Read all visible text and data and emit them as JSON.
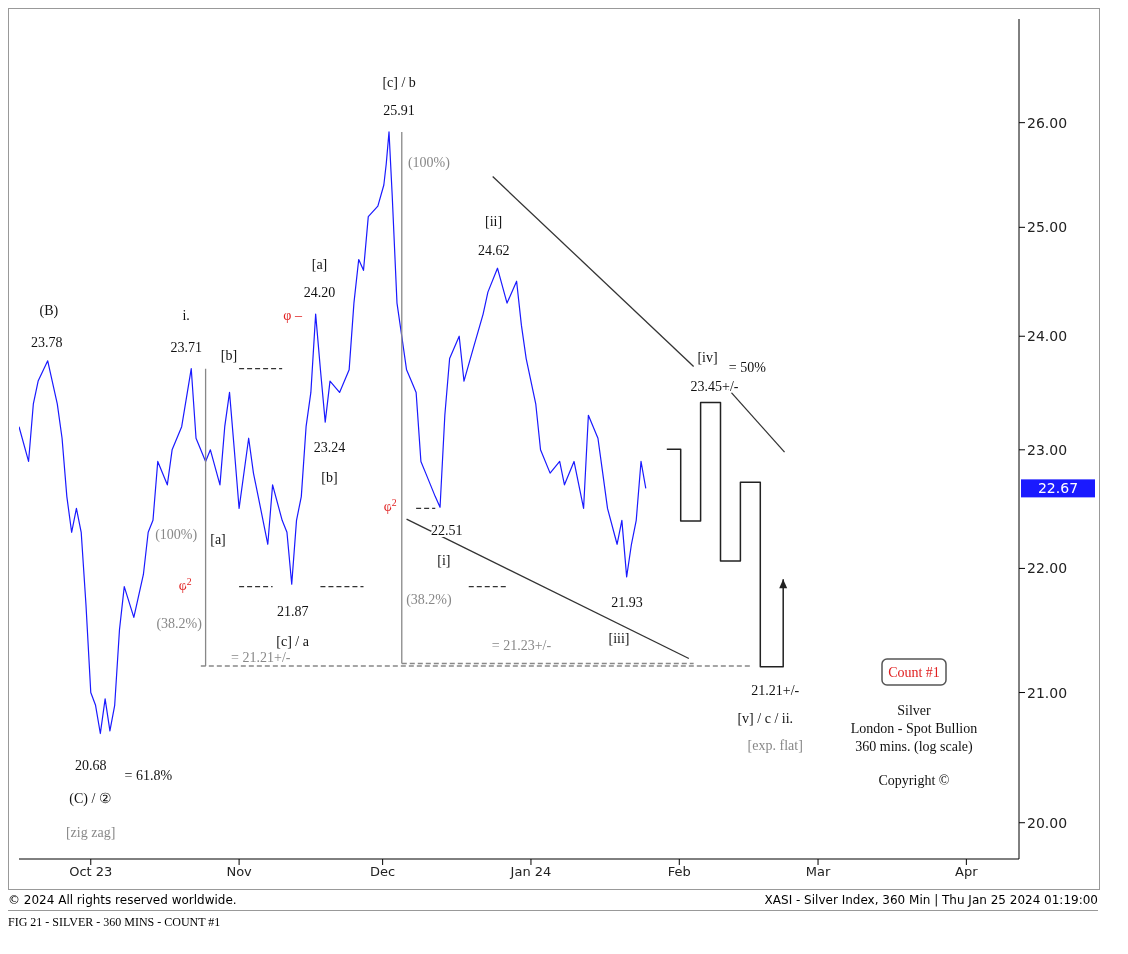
{
  "chart_data": {
    "type": "line",
    "marker": "none",
    "log": "y",
    "xlim": [
      "2023-09-16",
      "2024-04-12"
    ],
    "ylim": [
      19.73,
      27.03
    ],
    "xticks": [
      {
        "value": "2023-10-01",
        "label": "Oct 23"
      },
      {
        "value": "2023-11-01",
        "label": "Nov"
      },
      {
        "value": "2023-12-01",
        "label": "Dec"
      },
      {
        "value": "2024-01-01",
        "label": "Jan 24"
      },
      {
        "value": "2024-02-01",
        "label": "Feb"
      },
      {
        "value": "2024-03-01",
        "label": "Mar"
      },
      {
        "value": "2024-04-01",
        "label": "Apr"
      }
    ],
    "yticks": [
      {
        "value": 20,
        "label": "20.00"
      },
      {
        "value": 21,
        "label": "21.00"
      },
      {
        "value": 22,
        "label": "22.00"
      },
      {
        "value": 23,
        "label": "23.00"
      },
      {
        "value": 24,
        "label": "24.00"
      },
      {
        "value": 25,
        "label": "25.00"
      },
      {
        "value": 26,
        "label": "26.00"
      }
    ],
    "series": [
      {
        "color": "#1a1aff",
        "x": [
          "2023-09-16",
          "2023-09-18",
          "2023-09-19",
          "2023-09-20",
          "2023-09-22",
          "2023-09-24",
          "2023-09-25",
          "2023-09-26",
          "2023-09-27",
          "2023-09-28",
          "2023-09-29",
          "2023-09-30",
          "2023-10-01",
          "2023-10-02",
          "2023-10-03",
          "2023-10-04",
          "2023-10-05",
          "2023-10-06",
          "2023-10-07",
          "2023-10-08",
          "2023-10-10",
          "2023-10-12",
          "2023-10-13",
          "2023-10-14",
          "2023-10-15",
          "2023-10-17",
          "2023-10-18",
          "2023-10-20",
          "2023-10-22",
          "2023-10-23",
          "2023-10-25",
          "2023-10-26",
          "2023-10-28",
          "2023-10-29",
          "2023-10-30",
          "2023-10-31",
          "2023-11-01",
          "2023-11-03",
          "2023-11-04",
          "2023-11-05",
          "2023-11-07",
          "2023-11-08",
          "2023-11-10",
          "2023-11-11",
          "2023-11-12",
          "2023-11-13",
          "2023-11-14",
          "2023-11-15",
          "2023-11-16",
          "2023-11-17",
          "2023-11-18",
          "2023-11-19",
          "2023-11-20",
          "2023-11-22",
          "2023-11-24",
          "2023-11-25",
          "2023-11-26",
          "2023-11-27",
          "2023-11-28",
          "2023-11-30",
          "2023-12-01T06:00",
          "2023-12-01T18:00",
          "2023-12-02T08:00",
          "2023-12-03",
          "2023-12-04",
          "2023-12-05",
          "2023-12-06",
          "2023-12-07",
          "2023-12-08",
          "2023-12-09",
          "2023-12-10",
          "2023-12-12",
          "2023-12-13",
          "2023-12-14",
          "2023-12-15",
          "2023-12-17",
          "2023-12-18",
          "2023-12-20",
          "2023-12-22",
          "2023-12-23",
          "2023-12-25",
          "2023-12-27",
          "2023-12-29",
          "2023-12-30",
          "2023-12-31",
          "2024-01-02",
          "2024-01-03",
          "2024-01-05",
          "2024-01-07",
          "2024-01-08",
          "2024-01-10",
          "2024-01-12",
          "2024-01-13",
          "2024-01-15",
          "2024-01-16",
          "2024-01-17",
          "2024-01-19",
          "2024-01-20",
          "2024-01-21",
          "2024-01-22",
          "2024-01-23",
          "2024-01-24",
          "2024-01-25"
        ],
        "values": [
          23.2,
          22.9,
          23.4,
          23.6,
          23.78,
          23.4,
          23.1,
          22.6,
          22.3,
          22.5,
          22.3,
          21.7,
          21.0,
          20.9,
          20.68,
          20.95,
          20.7,
          20.9,
          21.5,
          21.85,
          21.6,
          21.95,
          22.3,
          22.4,
          22.9,
          22.7,
          23.0,
          23.2,
          23.71,
          23.1,
          22.9,
          23.0,
          22.7,
          23.2,
          23.5,
          23.0,
          22.5,
          23.1,
          22.8,
          22.6,
          22.2,
          22.7,
          22.4,
          22.3,
          21.87,
          22.4,
          22.6,
          23.2,
          23.5,
          24.2,
          23.7,
          23.24,
          23.6,
          23.5,
          23.7,
          24.3,
          24.7,
          24.6,
          25.1,
          25.2,
          25.4,
          25.6,
          25.91,
          25.3,
          24.3,
          24.0,
          23.7,
          23.6,
          23.5,
          22.9,
          22.8,
          22.6,
          22.51,
          23.3,
          23.8,
          24.0,
          23.6,
          23.9,
          24.2,
          24.4,
          24.62,
          24.3,
          24.5,
          24.1,
          23.8,
          23.4,
          23.0,
          22.8,
          22.9,
          22.7,
          22.9,
          22.5,
          23.3,
          23.1,
          22.8,
          22.5,
          22.2,
          22.4,
          21.93,
          22.2,
          22.4,
          22.9,
          22.67
        ]
      },
      {
        "color": "#333333",
        "x": [
          "2023-12-24",
          "2024-02-04"
        ],
        "values": [
          25.48,
          23.73
        ]
      },
      {
        "color": "#333333",
        "x": [
          "2024-02-11",
          "2024-02-23"
        ],
        "values": [
          23.54,
          22.98
        ]
      },
      {
        "color": "#333333",
        "x": [
          "2023-12-06",
          "2024-02-03"
        ],
        "values": [
          22.41,
          21.27
        ]
      },
      {
        "color": "#888888",
        "line_style": "dashed",
        "x": [
          "2023-10-24",
          "2024-02-16"
        ],
        "values": [
          21.21,
          21.21
        ]
      },
      {
        "color": "#888888",
        "line_style": "dashed",
        "x": [
          "2023-12-05",
          "2024-02-04"
        ],
        "values": [
          21.23,
          21.23
        ]
      },
      {
        "color": "#888888",
        "x": [
          "2023-10-25",
          "2023-10-25"
        ],
        "values": [
          23.71,
          21.21
        ]
      },
      {
        "color": "#888888",
        "x": [
          "2023-12-05",
          "2023-12-05"
        ],
        "values": [
          25.91,
          21.23
        ]
      },
      {
        "color": "#333333",
        "line_style": "dashed",
        "x": [
          "2023-11-01",
          "2023-11-10"
        ],
        "values": [
          23.71,
          23.71
        ]
      },
      {
        "color": "#333333",
        "line_style": "dashed",
        "x": [
          "2023-11-01",
          "2023-11-08"
        ],
        "values": [
          21.85,
          21.85
        ]
      },
      {
        "color": "#333333",
        "line_style": "dashed",
        "x": [
          "2023-11-18",
          "2023-11-27"
        ],
        "values": [
          21.85,
          21.85
        ]
      },
      {
        "color": "#333333",
        "line_style": "dashed",
        "x": [
          "2023-12-19",
          "2023-12-27"
        ],
        "values": [
          21.85,
          21.85
        ]
      },
      {
        "color": "#333333",
        "line_style": "dashed",
        "x": [
          "2023-12-08",
          "2023-12-12"
        ],
        "values": [
          22.5,
          22.5
        ]
      }
    ],
    "annotations": [
      "(B)",
      "23.78",
      "20.68",
      "= 61.8%",
      "(C) / ②",
      "[zig zag]",
      "i.",
      "23.71",
      "[b]",
      "(100%)",
      "[a]",
      "φ$^{2}$",
      "(38.2%)",
      "= 21.21+/-",
      "21.87",
      "[c] / a",
      "[a]",
      "24.20",
      "φ –",
      "23.24",
      "[b]",
      "[c] / b",
      "25.91",
      "(100%)",
      "φ$^{2}$",
      "22.51",
      "[i]",
      "(38.2%)",
      "= 21.23+/-",
      "[ii]",
      "24.62",
      "21.93",
      "[iii]",
      "[iv]",
      "= 50%",
      "23.45+/-",
      "21.21+/-",
      "[v] / c / ii.",
      "[exp. flat]",
      "22.67",
      "Count #1",
      "Silver",
      "London - Spot Bullion",
      "360 mins. (log scale)",
      "Copyright ©",
      "© 2024 All rights reserved worldwide.",
      "XASI - Silver Index, 360 Min | Thu Jan 25 2024 01:19:00",
      "FIG 21 - SILVER - 360 MINS - COUNT #1"
    ]
  }
}
